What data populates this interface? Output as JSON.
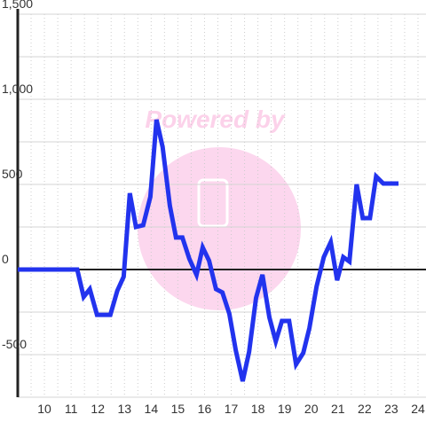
{
  "chart_data": {
    "type": "line",
    "watermark": "Powered by",
    "x": [
      9,
      11.23,
      11.47,
      11.7,
      11.97,
      12.47,
      12.73,
      12.97,
      13.2,
      13.43,
      13.7,
      13.97,
      14.2,
      14.43,
      14.7,
      14.93,
      15.17,
      15.43,
      15.7,
      15.93,
      16.17,
      16.43,
      16.67,
      16.93,
      17.17,
      17.43,
      17.67,
      17.93,
      18.17,
      18.43,
      18.67,
      18.9,
      19.17,
      19.43,
      19.7,
      19.93,
      20.2,
      20.47,
      20.73,
      20.97,
      21.2,
      21.43,
      21.7,
      21.93,
      22.2,
      22.43,
      22.7,
      23.27
    ],
    "series": [
      {
        "color": "#2233ee",
        "values": [
          0,
          0,
          -161,
          -115,
          -266,
          -266,
          -125,
          -42,
          448,
          250,
          260,
          427,
          880,
          719,
          375,
          188,
          188,
          63,
          -31,
          130,
          52,
          -115,
          -135,
          -260,
          -474,
          -656,
          -484,
          -167,
          -31,
          -281,
          -422,
          -302,
          -302,
          -557,
          -490,
          -344,
          -99,
          73,
          161,
          -63,
          73,
          47,
          500,
          302,
          302,
          547,
          505,
          505
        ]
      }
    ],
    "xlim": [
      9,
      24.3
    ],
    "xticks": [
      10,
      11,
      12,
      13,
      14,
      15,
      16,
      17,
      18,
      19,
      20,
      21,
      22,
      23,
      24
    ],
    "xminorticks": [
      9.5,
      10.5,
      11.5,
      12.5,
      13.5,
      14.5,
      15.5,
      16.5,
      17.5,
      18.5,
      19.5,
      20.5,
      21.5,
      22.5,
      23.5
    ],
    "ylim": [
      -750,
      1500
    ],
    "yticks": [
      -500,
      0,
      500,
      {
        "value": 1000,
        "label": "1,000"
      },
      {
        "value": 1500,
        "label": "1,500"
      }
    ],
    "yminorticks": [
      -750,
      -250,
      250,
      750,
      1250
    ],
    "grid": true
  }
}
